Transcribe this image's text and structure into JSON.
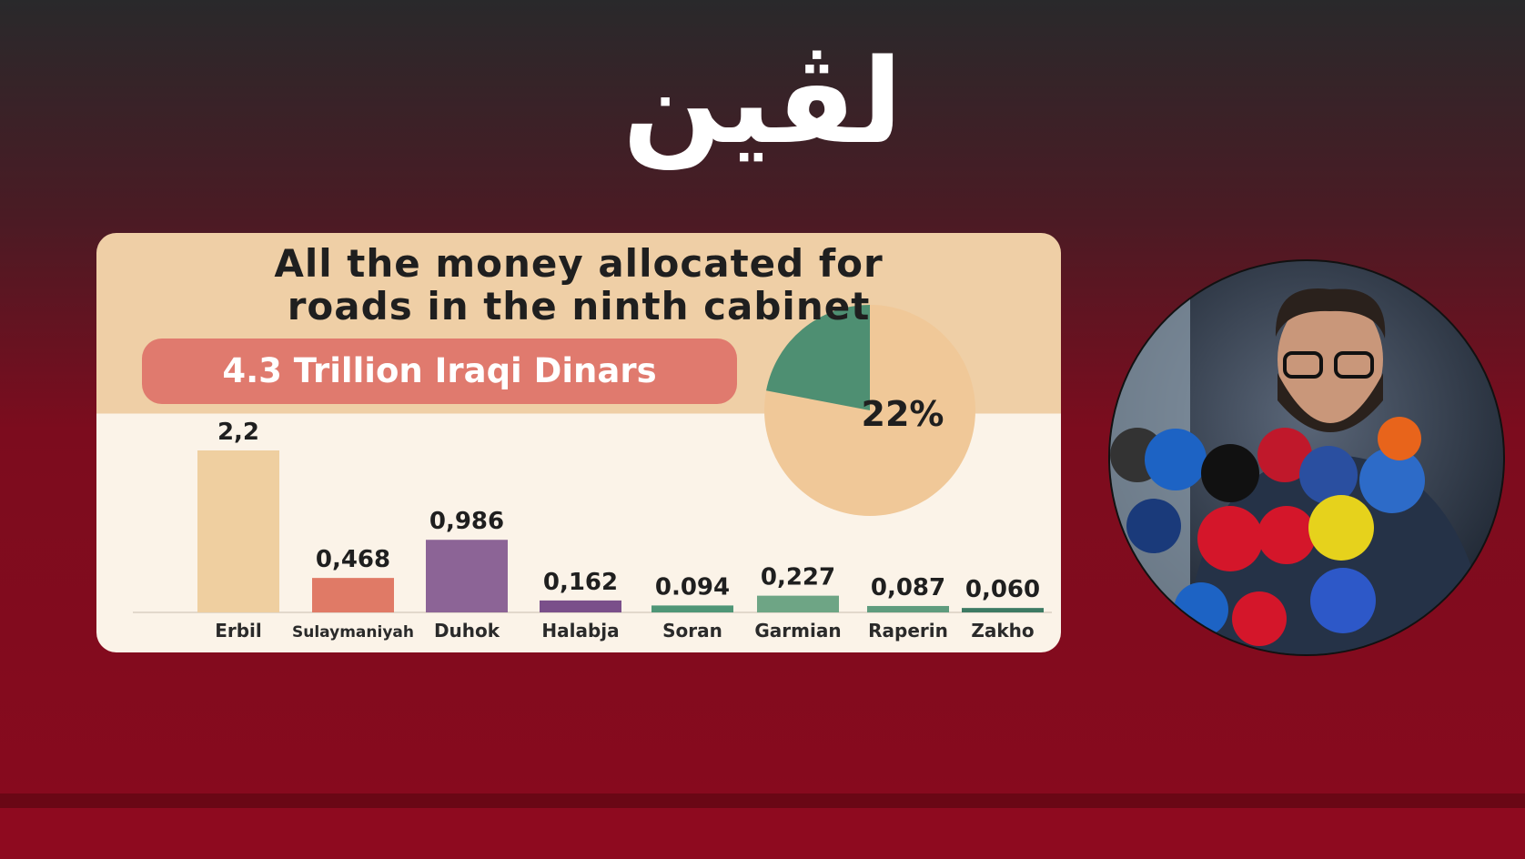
{
  "logo": "لڤين",
  "chart_data": [
    {
      "type": "bar",
      "title": "All the money allocated for roads in the ninth cabinet",
      "subtitle": "4.3 Trillion Iraqi Dinars",
      "categories": [
        "Erbil",
        "Sulaymaniyah",
        "Duhok",
        "Halabja",
        "Soran",
        "Garmian",
        "Raperin",
        "Zakho"
      ],
      "values": [
        2.2,
        0.468,
        0.986,
        0.162,
        0.094,
        0.227,
        0.087,
        0.06
      ],
      "value_labels": [
        "2,2",
        "0,468",
        "0,986",
        "0,162",
        "0.094",
        "0,227",
        "0,087",
        "0,060"
      ],
      "colors": [
        "#efcfa0",
        "#e07a66",
        "#8c6496",
        "#7a4f8a",
        "#4f9677",
        "#6ea585",
        "#5f9c7e",
        "#3d7a63"
      ]
    },
    {
      "type": "pie",
      "values": [
        22
      ],
      "value_labels": [
        "22%"
      ],
      "color": "#4e8f72",
      "rest_color": "#f0c898"
    }
  ]
}
